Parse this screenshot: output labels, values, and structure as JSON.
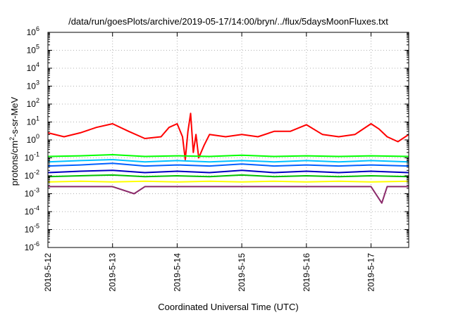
{
  "chart_data": {
    "type": "line",
    "title": "/data/run/goesPlots/archive/2019-05-17/14:00/bryn/../flux/5daysMoonFluxes.txt",
    "xlabel": "Coordinated Universal Time (UTC)",
    "ylabel": "protons/cm²-s-sr-MeV",
    "ylabel_parts": [
      "protons/cm",
      "2",
      "-s-sr-MeV"
    ],
    "y_scale": "log",
    "ylim": [
      1e-06,
      1000000.0
    ],
    "xlim": [
      "2019-05-12 00:00",
      "2019-05-17 14:00"
    ],
    "grid": true,
    "legend": "none",
    "y_ticks": [
      {
        "base": "10",
        "exp": "-6",
        "value": 1e-06
      },
      {
        "base": "10",
        "exp": "-5",
        "value": 1e-05
      },
      {
        "base": "10",
        "exp": "-4",
        "value": 0.0001
      },
      {
        "base": "10",
        "exp": "-3",
        "value": 0.001
      },
      {
        "base": "10",
        "exp": "-2",
        "value": 0.01
      },
      {
        "base": "10",
        "exp": "-1",
        "value": 0.1
      },
      {
        "base": "10",
        "exp": "0",
        "value": 1
      },
      {
        "base": "10",
        "exp": "1",
        "value": 10
      },
      {
        "base": "10",
        "exp": "2",
        "value": 100
      },
      {
        "base": "10",
        "exp": "3",
        "value": 1000
      },
      {
        "base": "10",
        "exp": "4",
        "value": 10000
      },
      {
        "base": "10",
        "exp": "5",
        "value": 100000
      },
      {
        "base": "10",
        "exp": "6",
        "value": 1000000
      }
    ],
    "x_ticks": [
      {
        "label": "2019-5-12",
        "value": "2019-05-12 00:00"
      },
      {
        "label": "2019-5-13",
        "value": "2019-05-13 00:00"
      },
      {
        "label": "2019-5-14",
        "value": "2019-05-14 00:00"
      },
      {
        "label": "2019-5-15",
        "value": "2019-05-15 00:00"
      },
      {
        "label": "2019-5-16",
        "value": "2019-05-16 00:00"
      },
      {
        "label": "2019-5-17",
        "value": "2019-05-17 00:00"
      }
    ],
    "series": [
      {
        "color": "#ff0000",
        "x": [
          "2019-05-12 00:00",
          "2019-05-12 06:00",
          "2019-05-12 12:00",
          "2019-05-12 18:00",
          "2019-05-13 00:00",
          "2019-05-13 06:00",
          "2019-05-13 12:00",
          "2019-05-13 18:00",
          "2019-05-13 21:00",
          "2019-05-14 00:00",
          "2019-05-14 02:00",
          "2019-05-14 03:00",
          "2019-05-14 04:00",
          "2019-05-14 05:00",
          "2019-05-14 06:00",
          "2019-05-14 07:00",
          "2019-05-14 08:00",
          "2019-05-14 10:00",
          "2019-05-14 12:00",
          "2019-05-14 18:00",
          "2019-05-15 00:00",
          "2019-05-15 06:00",
          "2019-05-15 12:00",
          "2019-05-15 18:00",
          "2019-05-16 00:00",
          "2019-05-16 06:00",
          "2019-05-16 12:00",
          "2019-05-16 18:00",
          "2019-05-17 00:00",
          "2019-05-17 03:00",
          "2019-05-17 06:00",
          "2019-05-17 10:00",
          "2019-05-17 14:00"
        ],
        "y": [
          2.5,
          1.5,
          2.5,
          5,
          8,
          3,
          1.2,
          1.5,
          5,
          8,
          1.5,
          0.08,
          3,
          30,
          0.2,
          2,
          0.1,
          0.5,
          2,
          1.5,
          2,
          1.5,
          3,
          3,
          7,
          2,
          1.5,
          2,
          8,
          4,
          1.5,
          0.8,
          2
        ]
      },
      {
        "color": "#00ff00",
        "x": [
          "2019-05-12 00:00",
          "2019-05-12 12:00",
          "2019-05-13 00:00",
          "2019-05-13 12:00",
          "2019-05-14 00:00",
          "2019-05-14 12:00",
          "2019-05-15 00:00",
          "2019-05-15 12:00",
          "2019-05-16 00:00",
          "2019-05-16 12:00",
          "2019-05-17 00:00",
          "2019-05-17 14:00"
        ],
        "y": [
          0.12,
          0.13,
          0.15,
          0.12,
          0.13,
          0.12,
          0.14,
          0.12,
          0.13,
          0.12,
          0.13,
          0.12
        ]
      },
      {
        "color": "#00c0ff",
        "x": [
          "2019-05-12 00:00",
          "2019-05-12 12:00",
          "2019-05-13 00:00",
          "2019-05-13 12:00",
          "2019-05-14 00:00",
          "2019-05-14 12:00",
          "2019-05-15 00:00",
          "2019-05-15 12:00",
          "2019-05-16 00:00",
          "2019-05-16 12:00",
          "2019-05-17 00:00",
          "2019-05-17 14:00"
        ],
        "y": [
          0.06,
          0.07,
          0.08,
          0.06,
          0.07,
          0.06,
          0.07,
          0.06,
          0.07,
          0.06,
          0.07,
          0.06
        ]
      },
      {
        "color": "#0060ff",
        "x": [
          "2019-05-12 00:00",
          "2019-05-12 12:00",
          "2019-05-13 00:00",
          "2019-05-13 12:00",
          "2019-05-14 00:00",
          "2019-05-14 12:00",
          "2019-05-15 00:00",
          "2019-05-15 12:00",
          "2019-05-16 00:00",
          "2019-05-16 12:00",
          "2019-05-17 00:00",
          "2019-05-17 14:00"
        ],
        "y": [
          0.035,
          0.04,
          0.05,
          0.035,
          0.04,
          0.035,
          0.045,
          0.035,
          0.04,
          0.035,
          0.04,
          0.035
        ]
      },
      {
        "color": "#0000c0",
        "x": [
          "2019-05-12 00:00",
          "2019-05-12 12:00",
          "2019-05-13 00:00",
          "2019-05-13 12:00",
          "2019-05-14 00:00",
          "2019-05-14 12:00",
          "2019-05-15 00:00",
          "2019-05-15 12:00",
          "2019-05-16 00:00",
          "2019-05-16 12:00",
          "2019-05-17 00:00",
          "2019-05-17 14:00"
        ],
        "y": [
          0.015,
          0.018,
          0.02,
          0.015,
          0.018,
          0.015,
          0.02,
          0.015,
          0.018,
          0.015,
          0.018,
          0.015
        ]
      },
      {
        "color": "#00c000",
        "x": [
          "2019-05-12 00:00",
          "2019-05-12 12:00",
          "2019-05-13 00:00",
          "2019-05-13 12:00",
          "2019-05-14 00:00",
          "2019-05-14 12:00",
          "2019-05-15 00:00",
          "2019-05-15 12:00",
          "2019-05-16 00:00",
          "2019-05-16 12:00",
          "2019-05-17 00:00",
          "2019-05-17 14:00"
        ],
        "y": [
          0.009,
          0.01,
          0.011,
          0.009,
          0.01,
          0.009,
          0.011,
          0.009,
          0.01,
          0.009,
          0.01,
          0.009
        ]
      },
      {
        "color": "#ffff00",
        "x": [
          "2019-05-12 00:00",
          "2019-05-12 12:00",
          "2019-05-13 00:00",
          "2019-05-13 12:00",
          "2019-05-14 00:00",
          "2019-05-14 12:00",
          "2019-05-15 00:00",
          "2019-05-15 12:00",
          "2019-05-16 00:00",
          "2019-05-16 12:00",
          "2019-05-17 00:00",
          "2019-05-17 14:00"
        ],
        "y": [
          0.0045,
          0.005,
          0.0045,
          0.005,
          0.0045,
          0.005,
          0.0045,
          0.005,
          0.0045,
          0.005,
          0.0045,
          0.005
        ]
      },
      {
        "color": "#8b2a6a",
        "x": [
          "2019-05-12 00:00",
          "2019-05-12 12:00",
          "2019-05-13 00:00",
          "2019-05-13 08:00",
          "2019-05-13 12:00",
          "2019-05-14 00:00",
          "2019-05-14 12:00",
          "2019-05-15 00:00",
          "2019-05-15 12:00",
          "2019-05-16 00:00",
          "2019-05-16 12:00",
          "2019-05-17 00:00",
          "2019-05-17 04:00",
          "2019-05-17 06:00",
          "2019-05-17 14:00"
        ],
        "y": [
          0.0025,
          0.0025,
          0.0025,
          0.001,
          0.0025,
          0.0025,
          0.0025,
          0.0025,
          0.0025,
          0.0025,
          0.0025,
          0.0025,
          0.0003,
          0.0025,
          0.0025
        ]
      }
    ]
  }
}
